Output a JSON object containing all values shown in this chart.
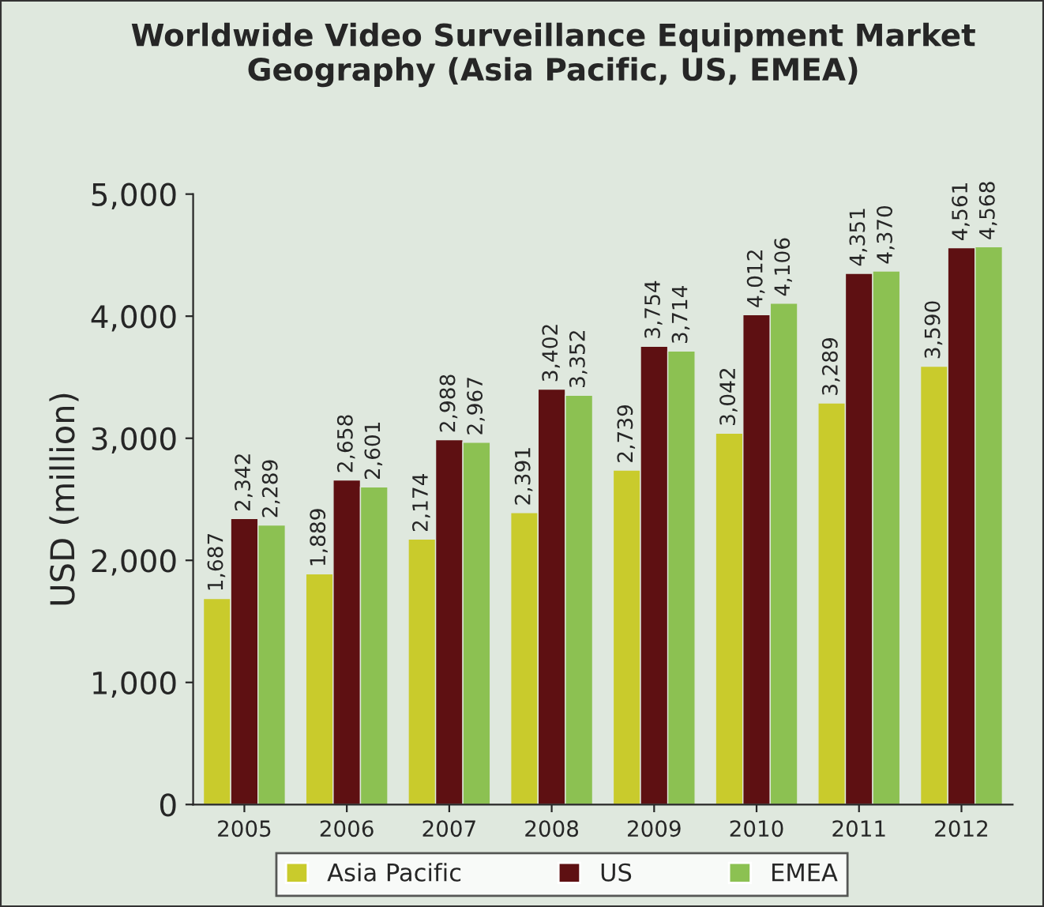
{
  "chart_data": {
    "type": "bar",
    "title": "Worldwide Video Surveillance Equipment Market\nGeography (Asia Pacific, US, EMEA)",
    "ylabel": "USD (million)",
    "categories": [
      "2005",
      "2006",
      "2007",
      "2008",
      "2009",
      "2010",
      "2011",
      "2012"
    ],
    "series": [
      {
        "name": "Asia Pacific",
        "color": "#c9cb2c",
        "values": [
          1687,
          1889,
          2174,
          2391,
          2739,
          3042,
          3289,
          3590
        ],
        "value_labels": [
          "1,687",
          "1,889",
          "2,174",
          "2,391",
          "2,739",
          "3,042",
          "3,289",
          "3,590"
        ]
      },
      {
        "name": "US",
        "color": "#5e1012",
        "values": [
          2342,
          2658,
          2988,
          3402,
          3754,
          4012,
          4351,
          4561
        ],
        "value_labels": [
          "2,342",
          "2,658",
          "2,988",
          "3,402",
          "3,754",
          "4,012",
          "4,351",
          "4,561"
        ]
      },
      {
        "name": "EMEA",
        "color": "#8cc152",
        "values": [
          2289,
          2601,
          2967,
          3352,
          3714,
          4106,
          4370,
          4568
        ],
        "value_labels": [
          "2,289",
          "2,601",
          "2,967",
          "3,352",
          "3,714",
          "4,106",
          "4,370",
          "4,568"
        ]
      }
    ],
    "ylim": [
      0,
      5000
    ],
    "yticks": [
      {
        "value": 0,
        "label": "0"
      },
      {
        "value": 1000,
        "label": "1,000"
      },
      {
        "value": 2000,
        "label": "2,000"
      },
      {
        "value": 3000,
        "label": "3,000"
      },
      {
        "value": 4000,
        "label": "4,000"
      },
      {
        "value": 5000,
        "label": "5,000"
      }
    ],
    "grid": false,
    "legend": "bottom"
  }
}
